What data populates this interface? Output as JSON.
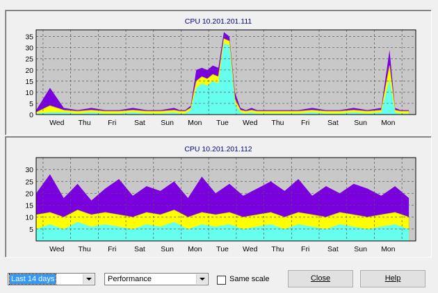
{
  "charts": [
    {
      "title": "CPU 10.201.201.111"
    },
    {
      "title": "CPU 10.201.201.112"
    }
  ],
  "chart_data": [
    {
      "type": "area",
      "title": "CPU 10.201.201.111",
      "x_tick_labels": [
        "Wed",
        "Thu",
        "Fri",
        "Sat",
        "Sun",
        "Mon",
        "Tue",
        "Wed",
        "Thu",
        "Fri",
        "Sat",
        "Sun",
        "Mon"
      ],
      "y_tick_labels": [
        "0",
        "5",
        "10",
        "15",
        "20",
        "25",
        "30",
        "35"
      ],
      "ylim": [
        0,
        38
      ],
      "grid": true,
      "series_colors": {
        "max": "#7a00e0",
        "avg": "#ffff00",
        "min": "#66ffee"
      },
      "x": [
        0,
        0.5,
        1,
        1.5,
        2,
        2.5,
        3,
        3.5,
        4,
        4.5,
        5,
        5.2,
        5.4,
        5.6,
        5.8,
        6,
        6.2,
        6.4,
        6.6,
        6.8,
        7,
        7.2,
        7.4,
        7.6,
        7.8,
        8,
        8.5,
        9,
        9.5,
        10,
        10.5,
        11,
        11.5,
        12,
        12.5,
        12.8,
        13,
        13.2,
        13.5
      ],
      "series": [
        {
          "values": [
            2,
            12,
            3,
            2,
            3,
            2,
            2,
            3,
            2,
            2,
            3,
            2,
            2,
            4,
            20,
            21,
            20,
            22,
            21,
            37,
            35,
            10,
            3,
            2,
            3,
            2,
            2,
            2,
            2,
            3,
            2,
            2,
            3,
            2,
            3,
            29,
            3,
            2,
            2
          ]
        },
        {
          "values": [
            1,
            4,
            2,
            1.5,
            2,
            1.5,
            1.5,
            2,
            1.5,
            1.5,
            2,
            1.5,
            1.5,
            3,
            15,
            17,
            16,
            18,
            17,
            34,
            33,
            7,
            2,
            1.5,
            2,
            1.5,
            1.5,
            1.5,
            1.5,
            2,
            1.5,
            1.5,
            2,
            1.5,
            2,
            22,
            2,
            1.5,
            1.5
          ]
        },
        {
          "values": [
            0.5,
            1,
            1,
            0.5,
            1,
            0.5,
            0.5,
            1,
            0.5,
            0.5,
            1,
            0.5,
            0.5,
            2,
            12,
            14,
            13,
            15,
            14,
            32,
            31,
            5,
            1,
            0.5,
            1,
            0.5,
            0.5,
            0.5,
            0.5,
            1,
            0.5,
            0.5,
            1,
            0.5,
            1,
            16,
            1,
            0.5,
            0.5
          ]
        }
      ]
    },
    {
      "type": "area",
      "title": "CPU 10.201.201.112",
      "x_tick_labels": [
        "Wed",
        "Thu",
        "Fri",
        "Sat",
        "Sun",
        "Mon",
        "Tue",
        "Wed",
        "Thu",
        "Fri",
        "Sat",
        "Sun",
        "Mon"
      ],
      "y_tick_labels": [
        "5",
        "10",
        "15",
        "20",
        "25",
        "30"
      ],
      "ylim": [
        0,
        35
      ],
      "grid": true,
      "series_colors": {
        "max": "#7a00e0",
        "avg": "#ffff00",
        "min": "#66ffee"
      },
      "x": [
        0,
        0.5,
        1,
        1.5,
        2,
        2.5,
        3,
        3.5,
        4,
        4.5,
        5,
        5.5,
        6,
        6.5,
        7,
        7.5,
        8,
        8.5,
        9,
        9.5,
        10,
        10.5,
        11,
        11.5,
        12,
        12.5,
        13,
        13.5
      ],
      "series": [
        {
          "values": [
            20,
            28,
            18,
            24,
            17,
            22,
            26,
            19,
            23,
            21,
            25,
            18,
            27,
            20,
            24,
            19,
            22,
            25,
            21,
            26,
            19,
            23,
            20,
            24,
            22,
            19,
            23,
            18
          ]
        },
        {
          "values": [
            11,
            12,
            10,
            13,
            11,
            12,
            11,
            10,
            12,
            11,
            13,
            10,
            12,
            11,
            12,
            10,
            11,
            12,
            10,
            12,
            11,
            10,
            12,
            11,
            10,
            11,
            12,
            10
          ]
        },
        {
          "values": [
            5,
            7,
            5,
            8,
            6,
            7,
            6,
            5,
            7,
            6,
            8,
            5,
            7,
            6,
            7,
            5,
            6,
            7,
            5,
            7,
            6,
            5,
            7,
            6,
            5,
            6,
            7,
            5
          ]
        }
      ]
    }
  ],
  "controls": {
    "range_value": "Last 14 days",
    "mode_value": "Performance",
    "same_scale_label": "Same scale",
    "close_label": "Close",
    "help_label": "Help"
  }
}
